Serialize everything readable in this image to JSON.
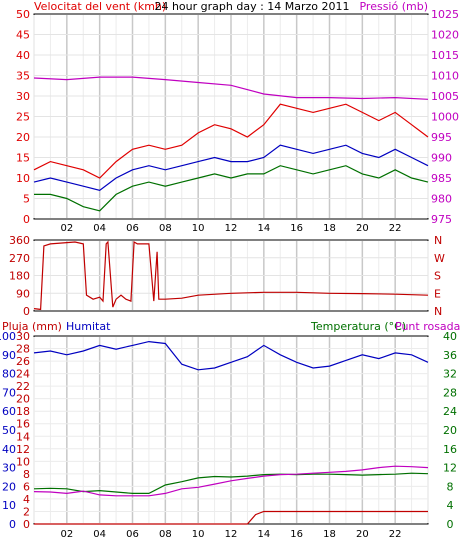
{
  "header": {
    "left_label": "Velocitat del vent (kmh)",
    "center_label": "24 hour graph day : 14 Marzo 2011",
    "right_label": "Pressió (mb)"
  },
  "wind_dir": {
    "right_letters": [
      "N",
      "W",
      "S",
      "E",
      "N"
    ]
  },
  "bottom": {
    "left_label": "Pluja (mm)",
    "left_label2": "Humitat",
    "right_label": "Temperatura (°C)",
    "right_label2": "Punt rosada"
  },
  "colors": {
    "wind_speed": "#e00000",
    "wind_avg": "#0000c0",
    "wind_min": "#007000",
    "pressure": "#c000c0",
    "rain": "#c00000",
    "humidity": "#0000c0",
    "temperature": "#007000",
    "dewpoint": "#c000c0"
  },
  "chart_data": [
    {
      "type": "line",
      "title": "24 hour graph day : 14 Marzo 2011",
      "ylabel": "Velocitat del vent (kmh)",
      "ylabel2": "Pressió (mb)",
      "grid": true,
      "x_ticks": [
        "02",
        "04",
        "06",
        "08",
        "10",
        "12",
        "14",
        "16",
        "18",
        "20",
        "22"
      ],
      "y_left_ticks": [
        "0",
        "5",
        "10",
        "15",
        "20",
        "25",
        "30",
        "35",
        "40",
        "45",
        "50"
      ],
      "y_left_range": [
        0,
        50
      ],
      "y_right_ticks": [
        "975",
        "980",
        "985",
        "990",
        "995",
        "1000",
        "1005",
        "1010",
        "1015",
        "1020",
        "1025"
      ],
      "y_right_range": [
        975,
        1025
      ],
      "x_range": [
        0,
        24
      ],
      "series": [
        {
          "name": "Velocitat del vent",
          "axis": "left",
          "x": [
            0,
            1,
            2,
            3,
            4,
            5,
            6,
            7,
            8,
            9,
            10,
            11,
            12,
            13,
            14,
            15,
            16,
            17,
            18,
            19,
            20,
            21,
            22,
            23,
            24
          ],
          "values": [
            12,
            14,
            13,
            12,
            10,
            14,
            17,
            18,
            17,
            18,
            21,
            23,
            22,
            20,
            23,
            28,
            27,
            26,
            27,
            28,
            26,
            24,
            26,
            23,
            20
          ]
        },
        {
          "name": "Mitjana",
          "axis": "left",
          "x": [
            0,
            1,
            2,
            3,
            4,
            5,
            6,
            7,
            8,
            9,
            10,
            11,
            12,
            13,
            14,
            15,
            16,
            17,
            18,
            19,
            20,
            21,
            22,
            23,
            24
          ],
          "values": [
            9,
            10,
            9,
            8,
            7,
            10,
            12,
            13,
            12,
            13,
            14,
            15,
            14,
            14,
            15,
            18,
            17,
            16,
            17,
            18,
            16,
            15,
            17,
            15,
            13
          ]
        },
        {
          "name": "Mínima",
          "axis": "left",
          "x": [
            0,
            1,
            2,
            3,
            4,
            5,
            6,
            7,
            8,
            9,
            10,
            11,
            12,
            13,
            14,
            15,
            16,
            17,
            18,
            19,
            20,
            21,
            22,
            23,
            24
          ],
          "values": [
            6,
            6,
            5,
            3,
            2,
            6,
            8,
            9,
            8,
            9,
            10,
            11,
            10,
            11,
            11,
            13,
            12,
            11,
            12,
            13,
            11,
            10,
            12,
            10,
            9
          ]
        },
        {
          "name": "Pressió",
          "axis": "right",
          "x": [
            0,
            2,
            4,
            6,
            8,
            10,
            12,
            14,
            16,
            18,
            20,
            22,
            24
          ],
          "values": [
            1009.4,
            1009.0,
            1009.6,
            1009.6,
            1009.0,
            1008.3,
            1007.6,
            1005.5,
            1004.6,
            1004.6,
            1004.4,
            1004.6,
            1004.2
          ]
        }
      ]
    },
    {
      "type": "line",
      "ylabel": "",
      "grid": true,
      "y_left_ticks": [
        "0",
        "90",
        "180",
        "270",
        "360"
      ],
      "y_range": [
        0,
        360
      ],
      "x_range": [
        0,
        24
      ],
      "series": [
        {
          "name": "Direcció del vent",
          "x": [
            0,
            0.4,
            0.6,
            1.0,
            2.5,
            3.0,
            3.2,
            3.6,
            4.0,
            4.2,
            4.4,
            4.5,
            4.8,
            5.0,
            5.3,
            5.6,
            5.9,
            6.1,
            6.3,
            7.0,
            7.3,
            7.5,
            7.6,
            8,
            9,
            10,
            12,
            14,
            16,
            18,
            20,
            22,
            24
          ],
          "values": [
            12,
            8,
            330,
            340,
            350,
            340,
            80,
            60,
            70,
            50,
            340,
            350,
            20,
            60,
            80,
            60,
            50,
            350,
            340,
            340,
            50,
            300,
            60,
            60,
            65,
            80,
            90,
            95,
            95,
            90,
            88,
            85,
            80
          ]
        }
      ]
    },
    {
      "type": "line",
      "ylabel": "Pluja (mm)",
      "ylabel2": "Temperatura (°C)",
      "grid": true,
      "y_left_ticks": [
        "0",
        "2",
        "4",
        "6",
        "8",
        "10",
        "12",
        "14",
        "16",
        "18",
        "20",
        "22",
        "24",
        "26",
        "28",
        "30"
      ],
      "y_left_range": [
        0,
        30
      ],
      "y_mid_ticks": [
        "0",
        "10",
        "20",
        "30",
        "40",
        "50",
        "60",
        "70",
        "80",
        "90",
        "100"
      ],
      "y_mid_range": [
        0,
        100
      ],
      "y_right_ticks": [
        "0",
        "4",
        "8",
        "12",
        "16",
        "20",
        "24",
        "28",
        "32",
        "36",
        "40"
      ],
      "y_right_range": [
        0,
        40
      ],
      "x_ticks": [
        "02",
        "04",
        "06",
        "08",
        "10",
        "12",
        "14",
        "16",
        "18",
        "20",
        "22"
      ],
      "x_range": [
        0,
        24
      ],
      "series": [
        {
          "name": "Pluja",
          "axis": "left",
          "x": [
            0,
            13,
            13.5,
            14,
            24
          ],
          "values": [
            0,
            0,
            1.5,
            2,
            2
          ]
        },
        {
          "name": "Humitat",
          "axis": "mid",
          "x": [
            0,
            1,
            2,
            3,
            4,
            5,
            6,
            7,
            8,
            9,
            10,
            11,
            12,
            13,
            14,
            15,
            16,
            17,
            18,
            19,
            20,
            21,
            22,
            23,
            24
          ],
          "values": [
            91,
            92,
            90,
            92,
            95,
            93,
            95,
            97,
            96,
            85,
            82,
            83,
            86,
            89,
            95,
            90,
            86,
            83,
            84,
            87,
            90,
            88,
            91,
            90,
            86
          ]
        },
        {
          "name": "Temperatura",
          "axis": "right",
          "x": [
            0,
            1,
            2,
            3,
            4,
            5,
            6,
            7,
            8,
            9,
            10,
            11,
            12,
            13,
            14,
            15,
            16,
            17,
            18,
            19,
            20,
            21,
            22,
            23,
            24
          ],
          "values": [
            7.5,
            7.6,
            7.5,
            6.9,
            7.1,
            6.8,
            6.5,
            6.5,
            8.3,
            9.0,
            9.8,
            10.1,
            10.0,
            10.2,
            10.5,
            10.6,
            10.5,
            10.6,
            10.6,
            10.5,
            10.4,
            10.5,
            10.6,
            10.8,
            10.7
          ]
        },
        {
          "name": "Punt rosada",
          "axis": "right",
          "x": [
            0,
            1,
            2,
            3,
            4,
            5,
            6,
            7,
            8,
            9,
            10,
            11,
            12,
            13,
            14,
            15,
            16,
            17,
            18,
            19,
            20,
            21,
            22,
            23,
            24
          ],
          "values": [
            6.9,
            6.8,
            6.5,
            7.0,
            6.2,
            6.0,
            6.0,
            6.0,
            6.5,
            7.5,
            7.8,
            8.5,
            9.2,
            9.7,
            10.2,
            10.5,
            10.6,
            10.8,
            11.0,
            11.2,
            11.5,
            12.0,
            12.3,
            12.2,
            12.0
          ]
        }
      ]
    }
  ]
}
